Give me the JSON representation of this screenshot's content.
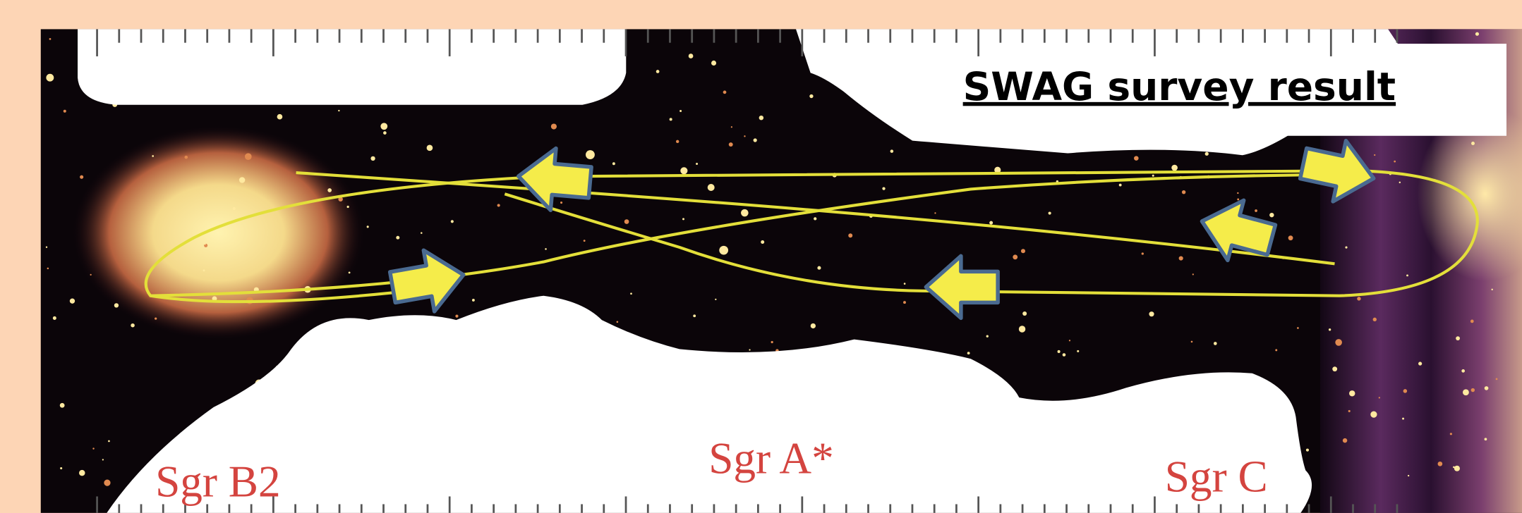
{
  "title": "SWAG survey result",
  "labels": [
    "Sgr B2",
    "Sgr A*",
    "Sgr C"
  ]
}
